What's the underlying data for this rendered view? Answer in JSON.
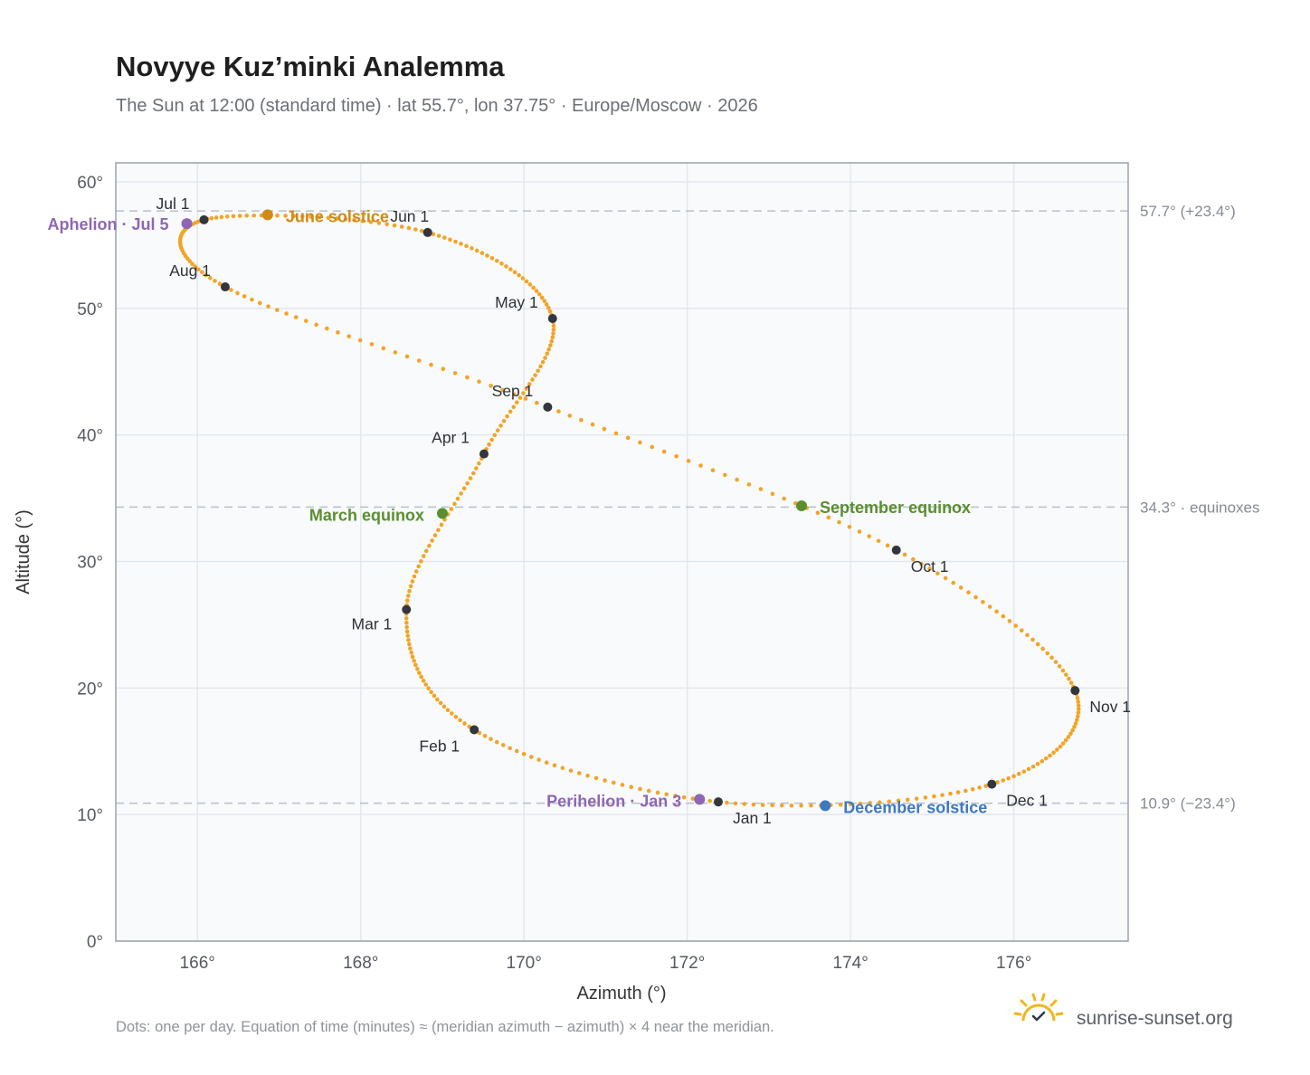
{
  "chart_data": {
    "type": "scatter",
    "title": "Novyye Kuz’minki Analemma",
    "subtitle": "The Sun at 12:00 (standard time) · lat 55.7°, lon 37.75° · Europe/Moscow · 2026",
    "xlabel": "Azimuth (°)",
    "ylabel": "Altitude (°)",
    "xlim": [
      165.0,
      177.4
    ],
    "ylim": [
      0,
      61.5
    ],
    "x_ticks": [
      {
        "value": 166,
        "label": "166°"
      },
      {
        "value": 168,
        "label": "168°"
      },
      {
        "value": 170,
        "label": "170°"
      },
      {
        "value": 172,
        "label": "172°"
      },
      {
        "value": 174,
        "label": "174°"
      },
      {
        "value": 176,
        "label": "176°"
      }
    ],
    "y_ticks": [
      {
        "value": 0,
        "label": "0°"
      },
      {
        "value": 10,
        "label": "10°"
      },
      {
        "value": 20,
        "label": "20°"
      },
      {
        "value": 30,
        "label": "30°"
      },
      {
        "value": 40,
        "label": "40°"
      },
      {
        "value": 50,
        "label": "50°"
      },
      {
        "value": 60,
        "label": "60°"
      }
    ],
    "grid": true,
    "reference_lines": [
      {
        "y": 57.7,
        "label": "57.7° (+23.4°)"
      },
      {
        "y": 34.3,
        "label": "34.3° · equinoxes"
      },
      {
        "y": 10.9,
        "label": "10.9° (−23.4°)"
      }
    ],
    "month_points": [
      {
        "label": "Jan 1",
        "x": 172.38,
        "y": 11.0
      },
      {
        "label": "Feb 1",
        "x": 169.39,
        "y": 16.7
      },
      {
        "label": "Mar 1",
        "x": 168.56,
        "y": 26.2
      },
      {
        "label": "Apr 1",
        "x": 169.51,
        "y": 38.5
      },
      {
        "label": "May 1",
        "x": 170.35,
        "y": 49.2
      },
      {
        "label": "Jun 1",
        "x": 168.82,
        "y": 56.0
      },
      {
        "label": "Jul 1",
        "x": 166.08,
        "y": 57.0
      },
      {
        "label": "Aug 1",
        "x": 166.34,
        "y": 51.7
      },
      {
        "label": "Sep 1",
        "x": 170.29,
        "y": 42.2
      },
      {
        "label": "Oct 1",
        "x": 174.56,
        "y": 30.9
      },
      {
        "label": "Nov 1",
        "x": 176.75,
        "y": 19.8
      },
      {
        "label": "Dec 1",
        "x": 175.73,
        "y": 12.4
      }
    ],
    "events": [
      {
        "label": "March equinox",
        "x": 169.0,
        "y": 33.8,
        "color": "#5a8f2f"
      },
      {
        "label": "June solstice",
        "x": 166.86,
        "y": 57.4,
        "color": "#d08a14"
      },
      {
        "label": "September equinox",
        "x": 173.4,
        "y": 34.4,
        "color": "#5a8f2f"
      },
      {
        "label": "December solstice",
        "x": 173.69,
        "y": 10.7,
        "color": "#3f78c1"
      },
      {
        "label": "Aphelion · Jul 5",
        "x": 165.87,
        "y": 56.7,
        "color": "#8e67b4"
      },
      {
        "label": "Perihelion · Jan 3",
        "x": 172.15,
        "y": 11.2,
        "color": "#8e67b4"
      }
    ],
    "curve_color": "#f2a427",
    "footnote": "Dots: one per day. Equation of time (minutes) ≈ (meridian azimuth − azimuth) × 4 near the meridian."
  },
  "brand": {
    "name": "sunrise-sunset.org",
    "icon": "sun-check-icon"
  }
}
